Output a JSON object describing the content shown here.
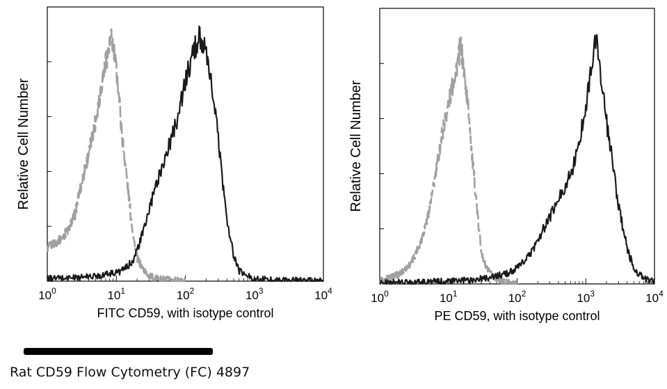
{
  "chart_data": [
    {
      "type": "line",
      "title": "",
      "xlabel": "FITC CD59, with isotype control",
      "ylabel": "Relative Cell Number",
      "x_scale": "log",
      "xlim": [
        1,
        10000
      ],
      "ylim": [
        0,
        100
      ],
      "x_ticks": [
        1,
        10,
        100,
        1000,
        10000
      ],
      "x_tick_labels": [
        {
          "base": "10",
          "exp": "0"
        },
        {
          "base": "10",
          "exp": "1"
        },
        {
          "base": "10",
          "exp": "2"
        },
        {
          "base": "10",
          "exp": "3"
        },
        {
          "base": "10",
          "exp": "4"
        }
      ],
      "grid": false,
      "legend": "none",
      "series": [
        {
          "style": "dashed",
          "color": "#a0a0a0",
          "points": [
            [
              1,
              13
            ],
            [
              1.5,
              16
            ],
            [
              2,
              20
            ],
            [
              2.5,
              26
            ],
            [
              3,
              36
            ],
            [
              3.5,
              44
            ],
            [
              4,
              50
            ],
            [
              5,
              63
            ],
            [
              6,
              76
            ],
            [
              7,
              86
            ],
            [
              8,
              92
            ],
            [
              8.5,
              95
            ],
            [
              9,
              92
            ],
            [
              10,
              83
            ],
            [
              11,
              72
            ],
            [
              12,
              58
            ],
            [
              14,
              42
            ],
            [
              16,
              27
            ],
            [
              18,
              16
            ],
            [
              20,
              9
            ],
            [
              24,
              5
            ],
            [
              30,
              2
            ],
            [
              40,
              1
            ],
            [
              60,
              0.5
            ],
            [
              100,
              0
            ]
          ]
        },
        {
          "style": "solid",
          "color": "#1a1a1a",
          "points": [
            [
              1,
              1
            ],
            [
              3,
              1.5
            ],
            [
              5,
              2
            ],
            [
              8,
              3
            ],
            [
              10,
              3.5
            ],
            [
              12,
              4
            ],
            [
              15,
              6
            ],
            [
              18,
              9
            ],
            [
              20,
              12
            ],
            [
              25,
              20
            ],
            [
              30,
              28
            ],
            [
              40,
              40
            ],
            [
              50,
              48
            ],
            [
              60,
              54
            ],
            [
              80,
              66
            ],
            [
              100,
              78
            ],
            [
              120,
              86
            ],
            [
              140,
              92
            ],
            [
              160,
              96
            ],
            [
              180,
              93
            ],
            [
              200,
              88
            ],
            [
              250,
              74
            ],
            [
              300,
              56
            ],
            [
              350,
              38
            ],
            [
              400,
              24
            ],
            [
              500,
              10
            ],
            [
              600,
              4
            ],
            [
              800,
              2
            ],
            [
              1000,
              1
            ],
            [
              2000,
              0.5
            ],
            [
              10000,
              0
            ]
          ]
        }
      ]
    },
    {
      "type": "line",
      "title": "",
      "xlabel": "PE CD59, with isotype control",
      "ylabel": "Relative Cell Number",
      "x_scale": "log",
      "xlim": [
        1,
        10000
      ],
      "ylim": [
        0,
        100
      ],
      "x_ticks": [
        1,
        10,
        100,
        1000,
        10000
      ],
      "x_tick_labels": [
        {
          "base": "10",
          "exp": "0"
        },
        {
          "base": "10",
          "exp": "1"
        },
        {
          "base": "10",
          "exp": "2"
        },
        {
          "base": "10",
          "exp": "3"
        },
        {
          "base": "10",
          "exp": "4"
        }
      ],
      "grid": false,
      "legend": "none",
      "series": [
        {
          "style": "dashed",
          "color": "#a0a0a0",
          "points": [
            [
              1,
              1
            ],
            [
              2,
              4
            ],
            [
              3,
              9
            ],
            [
              4,
              17
            ],
            [
              5,
              26
            ],
            [
              6,
              37
            ],
            [
              7,
              48
            ],
            [
              8,
              58
            ],
            [
              10,
              70
            ],
            [
              12,
              80
            ],
            [
              14,
              88
            ],
            [
              15,
              93
            ],
            [
              16,
              88
            ],
            [
              18,
              76
            ],
            [
              20,
              66
            ],
            [
              22,
              50
            ],
            [
              25,
              35
            ],
            [
              28,
              20
            ],
            [
              32,
              9
            ],
            [
              40,
              4
            ],
            [
              60,
              1
            ],
            [
              100,
              0
            ]
          ]
        },
        {
          "style": "solid",
          "color": "#1a1a1a",
          "points": [
            [
              1,
              0.5
            ],
            [
              10,
              1
            ],
            [
              20,
              1.5
            ],
            [
              30,
              2
            ],
            [
              50,
              3
            ],
            [
              70,
              4
            ],
            [
              100,
              6
            ],
            [
              150,
              11
            ],
            [
              200,
              17
            ],
            [
              300,
              26
            ],
            [
              400,
              33
            ],
            [
              500,
              38
            ],
            [
              700,
              48
            ],
            [
              800,
              55
            ],
            [
              1000,
              70
            ],
            [
              1200,
              84
            ],
            [
              1400,
              95
            ],
            [
              1500,
              92
            ],
            [
              1700,
              78
            ],
            [
              2000,
              63
            ],
            [
              2500,
              46
            ],
            [
              3000,
              30
            ],
            [
              4000,
              14
            ],
            [
              5000,
              6
            ],
            [
              7000,
              2
            ],
            [
              10000,
              1
            ]
          ]
        }
      ]
    }
  ],
  "caption": "Rat CD59 Flow Cytometry (FC) 4897"
}
